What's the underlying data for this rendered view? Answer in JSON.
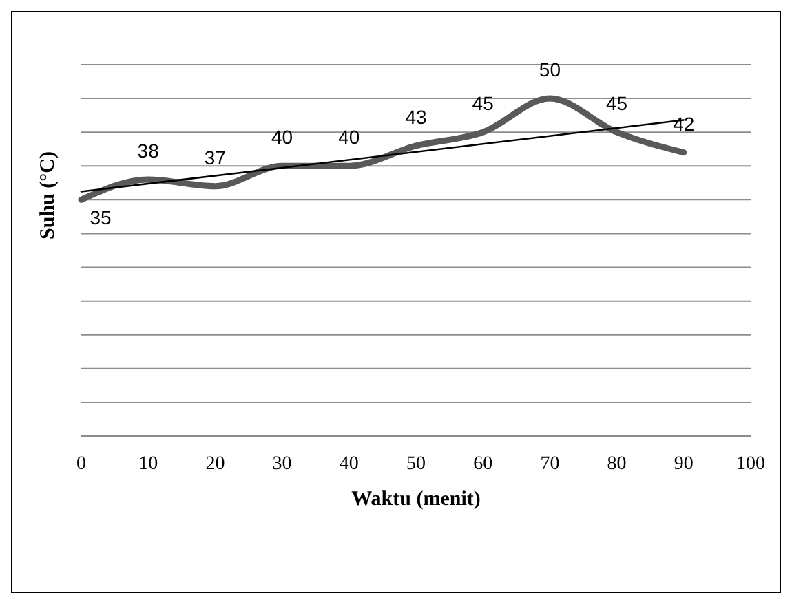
{
  "chart_data": {
    "type": "line",
    "xlabel": "Waktu (menit)",
    "ylabel": "Suhu (°C)",
    "xlim": [
      0,
      100
    ],
    "xticks": [
      0,
      10,
      20,
      30,
      40,
      50,
      60,
      70,
      80,
      90,
      100
    ],
    "ylim": [
      0,
      55
    ],
    "yticks": [
      {
        "value": 0,
        "label": null
      },
      {
        "value": 5,
        "label": null
      },
      {
        "value": 10,
        "label": null
      },
      {
        "value": 15,
        "label": null
      },
      {
        "value": 20,
        "label": null
      },
      {
        "value": 25,
        "label": null
      },
      {
        "value": 30,
        "label": null
      },
      {
        "value": 35,
        "label": null
      },
      {
        "value": 40,
        "label": null
      },
      {
        "value": 45,
        "label": null
      },
      {
        "value": 50,
        "label": null
      },
      {
        "value": 55,
        "label": null
      }
    ],
    "tick_labels": "x",
    "grid": "y",
    "series": [
      {
        "color": "#595959",
        "x": [
          0,
          10,
          20,
          30,
          40,
          50,
          60,
          70,
          80,
          90
        ],
        "values": [
          35,
          38,
          37,
          40,
          40,
          43,
          45,
          50,
          45,
          42
        ],
        "value_labels": [
          "35",
          "38",
          "37",
          "40",
          "40",
          "43",
          "45",
          "50",
          "45",
          "42"
        ]
      },
      {
        "color": "#000000",
        "x": [
          0,
          90
        ],
        "values": [
          36.2,
          46.8
        ]
      }
    ]
  }
}
